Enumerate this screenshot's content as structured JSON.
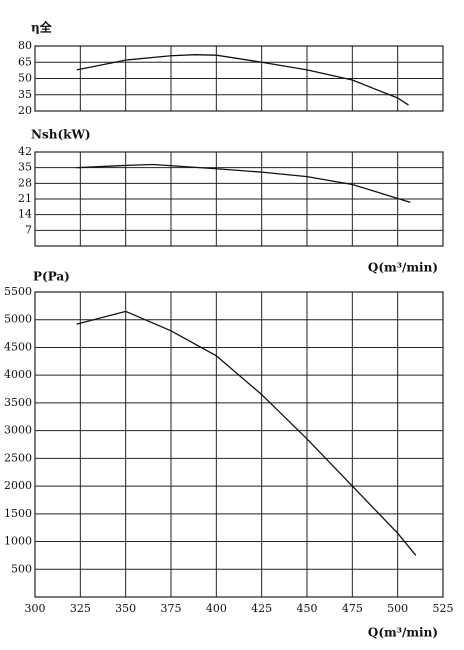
{
  "chart_data": [
    {
      "type": "line",
      "ylabel": "η全",
      "x": [
        323,
        350,
        375,
        388,
        400,
        425,
        450,
        475,
        500,
        506
      ],
      "values": [
        58,
        67,
        71,
        72,
        71.5,
        65,
        58,
        48.6,
        32,
        25.5
      ],
      "color": "#111111",
      "ylim": [
        20,
        80
      ],
      "yticks": [
        20,
        35,
        50,
        65,
        80
      ],
      "grid": true
    },
    {
      "type": "line",
      "ylabel": "Nsh(kW)",
      "xlabel": "Q(m³/min)",
      "x": [
        323,
        350,
        365,
        400,
        425,
        450,
        475,
        507
      ],
      "values": [
        35,
        36,
        36.4,
        34.5,
        33,
        31,
        27.5,
        19.5
      ],
      "color": "#111111",
      "ylim": [
        0,
        42
      ],
      "yticks": [
        7,
        14,
        21,
        28,
        35,
        42
      ],
      "grid": true
    },
    {
      "type": "line",
      "ylabel": "P(Pa)",
      "xlabel": "Q(m³/min)",
      "x": [
        323,
        350,
        375,
        400,
        425,
        450,
        475,
        500,
        510
      ],
      "values": [
        4920,
        5150,
        4800,
        4350,
        3650,
        2850,
        2000,
        1150,
        750
      ],
      "color": "#111111",
      "xlim": [
        300,
        525
      ],
      "xticks": [
        300,
        325,
        350,
        375,
        400,
        425,
        450,
        475,
        500,
        525
      ],
      "ylim": [
        0,
        5500
      ],
      "yticks": [
        500,
        1000,
        1500,
        2000,
        2500,
        3000,
        3500,
        4000,
        4500,
        5000,
        5500
      ],
      "grid": true
    }
  ]
}
